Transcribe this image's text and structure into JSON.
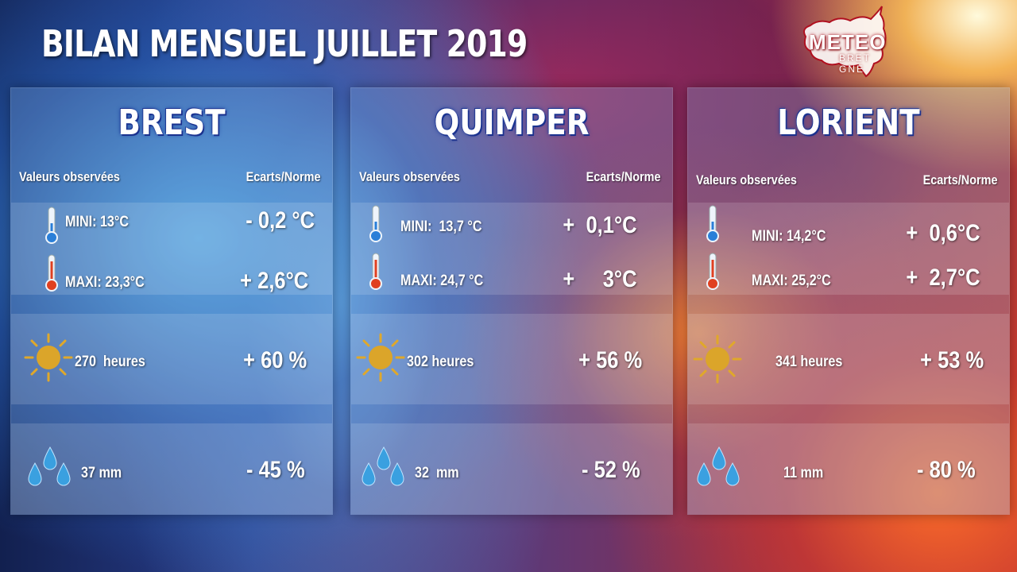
{
  "title": "BILAN MENSUEL JUILLET 2019",
  "logo": {
    "main": "METEO",
    "sub": "BRET GNE"
  },
  "headers": {
    "observed": "Valeurs observées",
    "deviation": "Ecarts/Norme"
  },
  "icons": {
    "mini": "thermometer-cold-icon",
    "maxi": "thermometer-hot-icon",
    "sun": "sun-icon",
    "rain": "raindrops-icon"
  },
  "colors": {
    "title_shadow": "#1c2f8a",
    "sun": "#e0a82a",
    "drop": "#3aa0e0",
    "thermo_cold": "#2a7fd8",
    "thermo_hot": "#e04020"
  },
  "cities": [
    {
      "name": "BREST",
      "mini": "MINI: 13°C",
      "mini_dev": "- 0,2 °C",
      "maxi": "MAXI: 23,3°C",
      "maxi_dev": "+ 2,6°C",
      "sun": "270  heures",
      "sun_dev": "+ 60 %",
      "rain": "37 mm",
      "rain_dev": "- 45 %"
    },
    {
      "name": "QUIMPER",
      "mini": "MINI:  13,7 °C",
      "mini_dev": "+  0,1°C",
      "maxi": "MAXI: 24,7 °C",
      "maxi_dev": "+     3°C",
      "sun": "302 heures",
      "sun_dev": "+ 56 %",
      "rain": "32  mm",
      "rain_dev": "- 52 %"
    },
    {
      "name": "LORIENT",
      "mini": "MINI: 14,2°C",
      "mini_dev": "+  0,6°C",
      "maxi": "MAXI: 25,2°C",
      "maxi_dev": "+  2,7°C",
      "sun": "341 heures",
      "sun_dev": "+ 53 %",
      "rain": "11 mm",
      "rain_dev": "- 80 %"
    }
  ]
}
